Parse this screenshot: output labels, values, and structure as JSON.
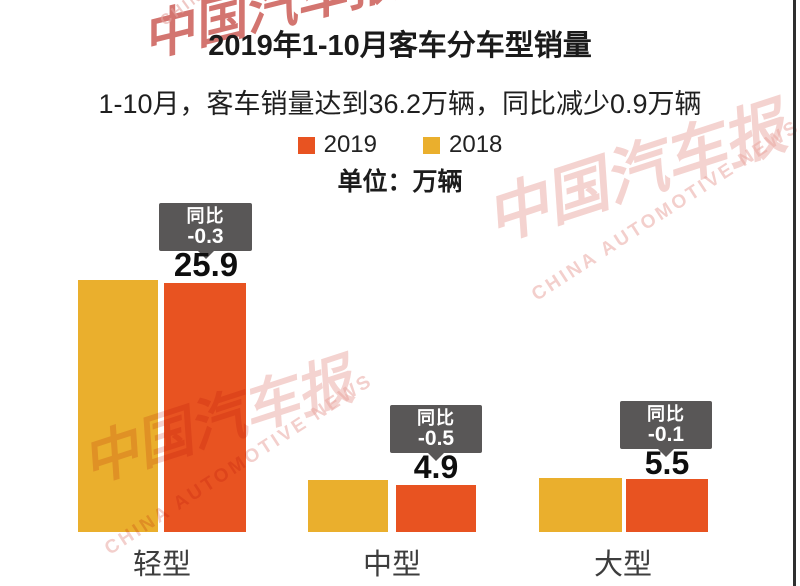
{
  "page": {
    "title": "2019年1-10月客车分车型销量",
    "subtitle": "1-10月，客车销量达到36.2万辆，同比减少0.9万辆",
    "unit_label": "单位：万辆"
  },
  "legend": {
    "items": [
      {
        "label": "2019",
        "color": "#E85321"
      },
      {
        "label": "2018",
        "color": "#EAAF2D"
      }
    ]
  },
  "badge_prefix": "同比",
  "groups": [
    {
      "category": "轻型",
      "value": "25.9",
      "yoy": "-0.3"
    },
    {
      "category": "中型",
      "value": "4.9",
      "yoy": "-0.5"
    },
    {
      "category": "大型",
      "value": "5.5",
      "yoy": "-0.1"
    }
  ],
  "watermark": {
    "logo_text": "中国汽车报",
    "caption": "CHINA AUTOMOTIVE NEWS"
  },
  "colors": {
    "series_2019": "#E85321",
    "series_2018": "#EAAF2D",
    "badge_bg": "#595757"
  },
  "chart_data": {
    "type": "bar",
    "title": "2019年1-10月客车分车型销量",
    "subtitle": "1-10月，客车销量达到36.2万辆，同比减少0.9万辆",
    "unit": "万辆",
    "categories": [
      "轻型",
      "中型",
      "大型"
    ],
    "series": [
      {
        "name": "2018",
        "color": "#EAAF2D",
        "values": [
          26.2,
          5.4,
          5.6
        ]
      },
      {
        "name": "2019",
        "color": "#E85321",
        "values": [
          25.9,
          4.9,
          5.5
        ]
      }
    ],
    "yoy_change": [
      -0.3,
      -0.5,
      -0.1
    ],
    "value_labels_2019": [
      "25.9",
      "4.9",
      "5.5"
    ],
    "legend_position": "top",
    "grid": false,
    "ylim": [
      0,
      27
    ]
  }
}
